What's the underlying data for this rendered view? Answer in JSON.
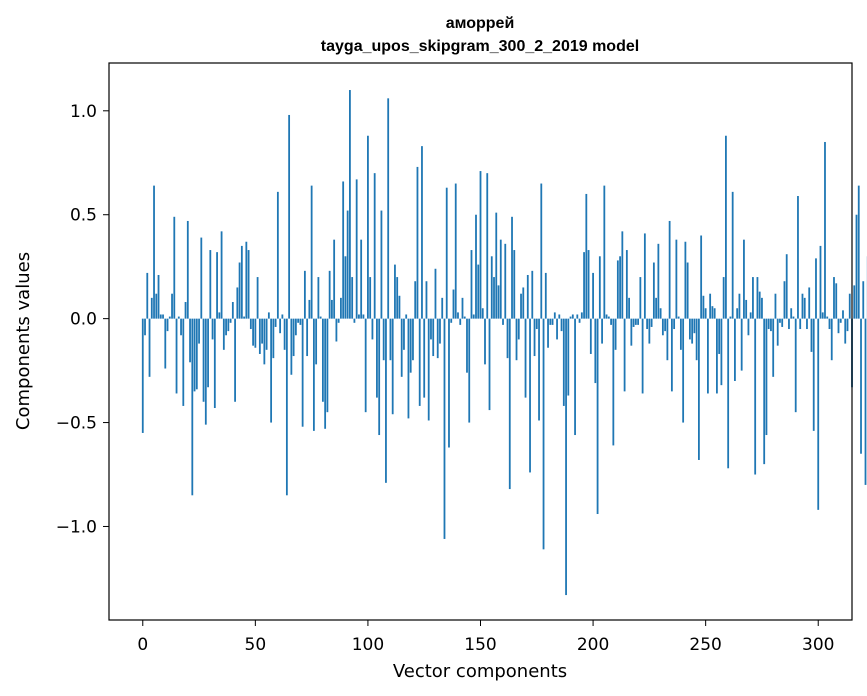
{
  "chart_data": {
    "type": "bar",
    "title_line1": "аморрей",
    "title_line2": "tayga_upos_skipgram_300_2_2019 model",
    "xlabel": "Vector components",
    "ylabel": "Components values",
    "xlim": [
      -15,
      315
    ],
    "ylim": [
      -1.45,
      1.23
    ],
    "xticks": [
      0,
      50,
      100,
      150,
      200,
      250,
      300
    ],
    "xtick_labels": [
      "0",
      "50",
      "100",
      "150",
      "200",
      "250",
      "300"
    ],
    "yticks": [
      -1.0,
      -0.5,
      0.0,
      0.5,
      1.0
    ],
    "ytick_labels": [
      "−1.0",
      "−0.5",
      "0.0",
      "0.5",
      "1.0"
    ],
    "bar_color": "#1f77b4",
    "values": [
      -0.55,
      -0.08,
      0.22,
      -0.28,
      0.1,
      0.64,
      0.12,
      0.21,
      0.02,
      0.02,
      -0.24,
      -0.06,
      0.01,
      0.12,
      0.49,
      -0.36,
      0.01,
      -0.08,
      -0.42,
      0.08,
      0.47,
      -0.21,
      -0.85,
      -0.35,
      -0.34,
      -0.12,
      0.39,
      -0.4,
      -0.51,
      -0.33,
      0.33,
      -0.1,
      -0.43,
      0.32,
      0.03,
      0.42,
      -0.15,
      -0.08,
      -0.06,
      -0.02,
      0.08,
      -0.4,
      0.15,
      0.27,
      0.35,
      0.01,
      0.37,
      0.33,
      -0.05,
      -0.13,
      -0.14,
      0.2,
      -0.17,
      -0.12,
      -0.22,
      -0.15,
      0.03,
      -0.5,
      -0.19,
      -0.04,
      0.61,
      -0.07,
      0.02,
      -0.15,
      -0.85,
      0.98,
      -0.27,
      -0.18,
      -0.08,
      -0.02,
      -0.03,
      -0.52,
      0.23,
      -0.18,
      0.09,
      0.64,
      -0.54,
      -0.22,
      0.2,
      0.01,
      -0.4,
      -0.53,
      -0.45,
      0.23,
      0.09,
      0.38,
      -0.11,
      -0.02,
      0.1,
      0.66,
      0.3,
      0.52,
      1.1,
      0.2,
      -0.02,
      0.67,
      0.02,
      0.38,
      0.02,
      -0.45,
      0.88,
      0.2,
      -0.1,
      0.7,
      -0.38,
      -0.56,
      0.52,
      -0.2,
      -0.79,
      1.06,
      -0.2,
      -0.46,
      0.26,
      0.2,
      0.11,
      -0.28,
      -0.15,
      0.02,
      -0.48,
      -0.26,
      -0.2,
      0.18,
      0.73,
      -0.42,
      0.83,
      -0.38,
      0.18,
      -0.49,
      -0.1,
      -0.18,
      0.24,
      -0.19,
      -0.12,
      0.1,
      -1.06,
      0.63,
      -0.62,
      -0.02,
      0.14,
      0.65,
      0.03,
      -0.03,
      0.1,
      0.01,
      -0.26,
      -0.5,
      0.33,
      0.02,
      0.5,
      0.26,
      0.71,
      0.05,
      -0.22,
      0.7,
      -0.44,
      0.3,
      0.2,
      0.51,
      0.16,
      0.38,
      -0.03,
      0.36,
      -0.19,
      -0.82,
      0.49,
      0.33,
      -0.2,
      -0.1,
      0.12,
      0.15,
      -0.38,
      0.21,
      -0.74,
      0.23,
      -0.18,
      -0.05,
      -0.49,
      0.65,
      -1.11,
      0.22,
      -0.14,
      -0.03,
      -0.03,
      0.03,
      -0.1,
      0.02,
      -0.06,
      -0.42,
      -1.33,
      -0.37,
      0.01,
      0.02,
      -0.56,
      0.02,
      -0.02,
      0.03,
      0.32,
      0.6,
      0.33,
      -0.17,
      0.22,
      -0.31,
      -0.94,
      0.3,
      -0.12,
      0.64,
      0.02,
      0.01,
      -0.03,
      -0.61,
      -0.15,
      0.28,
      0.3,
      0.42,
      -0.35,
      0.33,
      0.1,
      -0.13,
      -0.04,
      -0.03,
      -0.03,
      0.2,
      -0.36,
      0.41,
      -0.05,
      -0.12,
      -0.04,
      0.27,
      0.1,
      0.36,
      0.05,
      -0.08,
      -0.06,
      -0.2,
      0.47,
      -0.35,
      -0.05,
      0.38,
      0.01,
      -0.15,
      -0.5,
      0.37,
      0.27,
      -0.1,
      -0.12,
      -0.07,
      -0.2,
      -0.68,
      0.4,
      0.11,
      0.05,
      -0.36,
      0.12,
      0.06,
      0.05,
      -0.36,
      -0.17,
      -0.32,
      0.2,
      0.88,
      -0.72,
      0.01,
      0.61,
      -0.3,
      0.05,
      0.12,
      -0.25,
      0.38,
      0.09,
      -0.08,
      0.03,
      0.2,
      -0.75,
      0.2,
      0.13,
      0.1,
      -0.7,
      -0.56,
      -0.05,
      -0.06,
      -0.28,
      0.12,
      -0.13,
      -0.02,
      -0.04,
      0.18,
      0.31,
      -0.05,
      0.05,
      0.01,
      -0.45,
      0.59,
      -0.05,
      0.12,
      0.1,
      -0.05,
      0.15,
      -0.16,
      -0.54,
      0.29,
      -0.92,
      0.35,
      0.03,
      0.85,
      0.01,
      -0.05,
      -0.2,
      0.2,
      0.17,
      -0.07,
      -0.02,
      0.04,
      -0.12,
      -0.06,
      0.12,
      -0.33,
      0.16,
      0.5,
      0.64,
      -0.65,
      0.18,
      -0.8,
      0.3
    ]
  }
}
